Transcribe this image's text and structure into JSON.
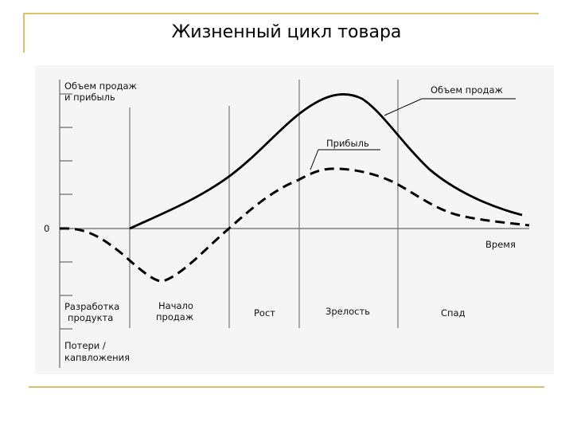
{
  "slide": {
    "title": "Жизненный цикл товара",
    "accent_color": "#d6c26a"
  },
  "diagram": {
    "y_axis_label_line1": "Объем продаж",
    "y_axis_label_line2": "и прибыль",
    "zero_label": "0",
    "x_axis_label": "Время",
    "bottom_label_line1": "Потери /",
    "bottom_label_line2": "капвложения",
    "curves": {
      "sales_label": "Объем продаж",
      "profit_label": "Прибыль"
    },
    "stages": [
      {
        "line1": "Разработка",
        "line2": "продукта"
      },
      {
        "line1": "Начало",
        "line2": "продаж"
      },
      {
        "line1": "Рост",
        "line2": ""
      },
      {
        "line1": "Зрелость",
        "line2": ""
      },
      {
        "line1": "Спад",
        "line2": ""
      }
    ]
  }
}
